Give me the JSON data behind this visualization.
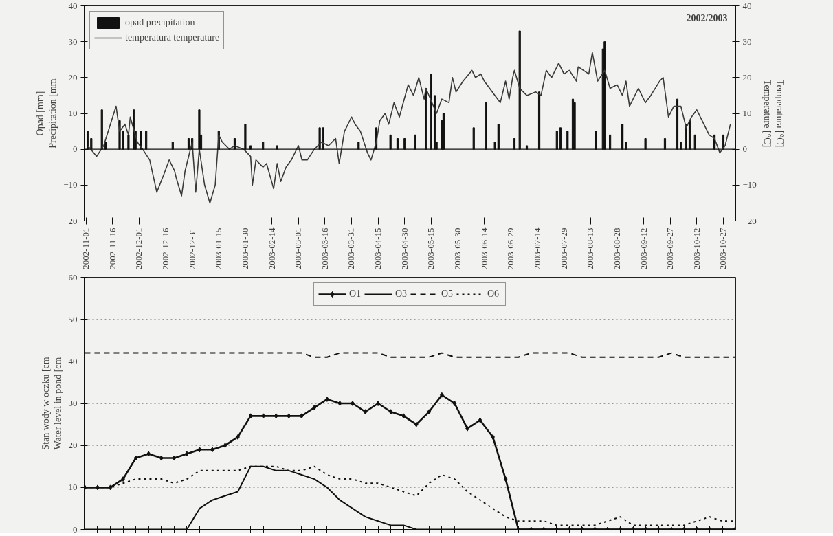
{
  "chart_data": [
    {
      "type": "bar",
      "ylabel": "Opad [mm]\nPrecipitation [mm",
      "y2label": "Temperatura [°C]\nTemperature [°C]",
      "annotations": [
        "2002/2003"
      ],
      "legend": "top left",
      "grid": false,
      "ref_lines": [
        {
          "axis": "y",
          "value": 0
        }
      ],
      "xlim": [
        "2002-10-31",
        "2003-11-03"
      ],
      "xticks": [
        "2002-11-01",
        "2002-11-16",
        "2002-12-01",
        "2002-12-16",
        "2002-12-31",
        "2003-01-15",
        "2003-01-30",
        "2003-02-14",
        "2003-03-01",
        "2003-03-16",
        "2003-03-31",
        "2003-04-15",
        "2003-04-30",
        "2003-05-15",
        "2003-05-30",
        "2003-06-14",
        "2003-06-29",
        "2003-07-14",
        "2003-07-29",
        "2003-08-13",
        "2003-08-28",
        "2003-09-12",
        "2003-09-27",
        "2003-10-12",
        "2003-10-27"
      ],
      "ylim": [
        -20,
        40
      ],
      "yticks": [
        -20,
        -10,
        0,
        10,
        20,
        30,
        40
      ],
      "y2lim": [
        -20,
        40
      ],
      "y2ticks": [
        -20,
        -10,
        0,
        10,
        20,
        30,
        40
      ],
      "series": [
        {
          "name": "opad precipitation",
          "type": "bar",
          "color": "#111111",
          "x": [
            "2002-11-02",
            "2002-11-04",
            "2002-11-10",
            "2002-11-12",
            "2002-11-20",
            "2002-11-22",
            "2002-11-25",
            "2002-11-28",
            "2002-11-29",
            "2002-12-02",
            "2002-12-05",
            "2002-12-20",
            "2002-12-29",
            "2002-12-31",
            "2003-01-04",
            "2003-01-05",
            "2003-01-15",
            "2003-01-24",
            "2003-01-30",
            "2003-02-02",
            "2003-02-09",
            "2003-02-17",
            "2003-03-13",
            "2003-03-15",
            "2003-04-04",
            "2003-04-14",
            "2003-04-22",
            "2003-04-26",
            "2003-04-30",
            "2003-05-06",
            "2003-05-12",
            "2003-05-15",
            "2003-05-17",
            "2003-05-18",
            "2003-05-21",
            "2003-05-22",
            "2003-06-08",
            "2003-06-15",
            "2003-06-20",
            "2003-06-22",
            "2003-07-01",
            "2003-07-04",
            "2003-07-08",
            "2003-07-15",
            "2003-07-25",
            "2003-07-27",
            "2003-07-31",
            "2003-08-03",
            "2003-08-04",
            "2003-08-16",
            "2003-08-20",
            "2003-08-21",
            "2003-08-24",
            "2003-08-31",
            "2003-09-02",
            "2003-09-13",
            "2003-09-24",
            "2003-10-01",
            "2003-10-03",
            "2003-10-06",
            "2003-10-08",
            "2003-10-11",
            "2003-10-22",
            "2003-10-27"
          ],
          "values": [
            5,
            3,
            11,
            2,
            8,
            5,
            4,
            11,
            5,
            5,
            5,
            2,
            3,
            3,
            11,
            4,
            5,
            3,
            7,
            1,
            2,
            1,
            6,
            6,
            2,
            6,
            4,
            3,
            3,
            4,
            17,
            21,
            15,
            2,
            8,
            10,
            6,
            13,
            2,
            7,
            3,
            33,
            1,
            16,
            5,
            6,
            5,
            14,
            13,
            5,
            28,
            30,
            4,
            7,
            2,
            3,
            3,
            14,
            2,
            7,
            8,
            4,
            4,
            4
          ]
        },
        {
          "name": "temperatura temperature",
          "type": "line",
          "color": "#3a3a3a",
          "x": [
            "2002-11-02",
            "2002-11-07",
            "2002-11-11",
            "2002-11-18",
            "2002-11-20",
            "2002-11-23",
            "2002-11-25",
            "2002-11-26",
            "2002-11-30",
            "2002-12-03",
            "2002-12-07",
            "2002-12-11",
            "2002-12-15",
            "2002-12-18",
            "2002-12-21",
            "2002-12-22",
            "2002-12-25",
            "2002-12-27",
            "2002-12-31",
            "2003-01-02",
            "2003-01-04",
            "2003-01-07",
            "2003-01-10",
            "2003-01-13",
            "2003-01-15",
            "2003-01-17",
            "2003-01-21",
            "2003-01-24",
            "2003-01-29",
            "2003-02-02",
            "2003-02-03",
            "2003-02-05",
            "2003-02-09",
            "2003-02-11",
            "2003-02-15",
            "2003-02-17",
            "2003-02-19",
            "2003-02-22",
            "2003-02-25",
            "2003-03-01",
            "2003-03-03",
            "2003-03-06",
            "2003-03-10",
            "2003-03-14",
            "2003-03-18",
            "2003-03-22",
            "2003-03-24",
            "2003-03-27",
            "2003-03-31",
            "2003-04-02",
            "2003-04-05",
            "2003-04-09",
            "2003-04-11",
            "2003-04-14",
            "2003-04-16",
            "2003-04-19",
            "2003-04-21",
            "2003-04-24",
            "2003-04-27",
            "2003-05-02",
            "2003-05-05",
            "2003-05-08",
            "2003-05-11",
            "2003-05-12",
            "2003-05-18",
            "2003-05-21",
            "2003-05-25",
            "2003-05-27",
            "2003-05-29",
            "2003-06-02",
            "2003-06-07",
            "2003-06-09",
            "2003-06-12",
            "2003-06-14",
            "2003-06-17",
            "2003-06-20",
            "2003-06-23",
            "2003-06-26",
            "2003-06-28",
            "2003-06-30",
            "2003-07-01",
            "2003-07-04",
            "2003-07-08",
            "2003-07-13",
            "2003-07-16",
            "2003-07-19",
            "2003-07-22",
            "2003-07-26",
            "2003-07-29",
            "2003-08-01",
            "2003-08-05",
            "2003-08-06",
            "2003-08-12",
            "2003-08-14",
            "2003-08-17",
            "2003-08-21",
            "2003-08-24",
            "2003-08-28",
            "2003-08-31",
            "2003-09-02",
            "2003-09-04",
            "2003-09-09",
            "2003-09-13",
            "2003-09-16",
            "2003-09-21",
            "2003-09-23",
            "2003-09-26",
            "2003-09-29",
            "2003-10-03",
            "2003-10-06",
            "2003-10-09",
            "2003-10-12",
            "2003-10-16",
            "2003-10-19",
            "2003-10-22",
            "2003-10-25",
            "2003-10-28",
            "2003-10-31"
          ],
          "values": [
            1,
            -2,
            1,
            12,
            5,
            7,
            4,
            9,
            2,
            0,
            -3,
            -12,
            -7,
            -3,
            -6,
            -8,
            -13,
            -6,
            2,
            -12,
            0,
            -10,
            -15,
            -10,
            4,
            2,
            0,
            1,
            0,
            -2,
            -10,
            -3,
            -5,
            -4,
            -11,
            -4,
            -9,
            -5,
            -3,
            1,
            -3,
            -3,
            0,
            2,
            1,
            3,
            -4,
            5,
            9,
            7,
            5,
            -1,
            -3,
            2,
            8,
            10,
            7,
            13,
            9,
            18,
            15,
            20,
            14,
            17,
            10,
            14,
            13,
            20,
            16,
            19,
            22,
            20,
            21,
            19,
            17,
            15,
            13,
            19,
            14,
            20,
            22,
            17,
            15,
            16,
            15,
            22,
            20,
            24,
            21,
            22,
            19,
            23,
            21,
            27,
            19,
            22,
            17,
            18,
            15,
            19,
            12,
            17,
            13,
            15,
            19,
            20,
            9,
            12,
            12,
            6,
            9,
            11,
            7,
            4,
            3,
            -1,
            1,
            7
          ]
        }
      ]
    },
    {
      "type": "line",
      "ylabel": "Stan wody w oczku [cm\nWater level in pond [cm",
      "legend": "top",
      "grid": "y",
      "tick_labels": "y",
      "categories": [
        null,
        null,
        null,
        null,
        null,
        null,
        null,
        null,
        null,
        null,
        null,
        null,
        null,
        null,
        null,
        null,
        null,
        null,
        null,
        null,
        null,
        null,
        null,
        null,
        null,
        null,
        null,
        null,
        null,
        null,
        null,
        null,
        null,
        null,
        null,
        null,
        null,
        null,
        null,
        null,
        null,
        null,
        null,
        null,
        null,
        null,
        null,
        null,
        null,
        null,
        null,
        null
      ],
      "ylim": [
        0,
        60
      ],
      "yticks": [
        0,
        10,
        20,
        30,
        40,
        50,
        60
      ],
      "series": [
        {
          "name": "O1",
          "color": "#111111",
          "marker": "diamond",
          "line_style": "solid",
          "values": [
            10,
            10,
            10,
            12,
            17,
            18,
            17,
            17,
            18,
            19,
            19,
            20,
            22,
            27,
            27,
            27,
            27,
            27,
            29,
            31,
            30,
            30,
            28,
            30,
            28,
            27,
            25,
            28,
            32,
            30,
            24,
            26,
            22,
            12,
            0,
            0,
            0,
            0,
            0,
            0,
            0,
            0,
            0,
            0,
            0,
            0,
            0,
            0,
            0,
            0,
            0,
            0
          ]
        },
        {
          "name": "O3",
          "color": "#111111",
          "marker": "none",
          "line_style": "solid",
          "values": [
            0,
            0,
            0,
            0,
            0,
            0,
            0,
            0,
            0,
            5,
            7,
            8,
            9,
            15,
            15,
            14,
            14,
            13,
            12,
            10,
            7,
            5,
            3,
            2,
            1,
            1,
            0,
            0,
            0,
            0,
            0,
            0,
            0,
            0,
            0,
            0,
            0,
            0,
            0,
            0,
            0,
            0,
            0,
            0,
            0,
            0,
            0,
            0,
            0,
            0,
            0,
            0
          ]
        },
        {
          "name": "O5",
          "color": "#111111",
          "marker": "none",
          "line_style": "dashed",
          "values": [
            42,
            42,
            42,
            42,
            42,
            42,
            42,
            42,
            42,
            42,
            42,
            42,
            42,
            42,
            42,
            42,
            42,
            42,
            41,
            41,
            42,
            42,
            42,
            42,
            41,
            41,
            41,
            41,
            42,
            41,
            41,
            41,
            41,
            41,
            41,
            42,
            42,
            42,
            42,
            41,
            41,
            41,
            41,
            41,
            41,
            41,
            42,
            41,
            41,
            41,
            41,
            41
          ]
        },
        {
          "name": "O6",
          "color": "#111111",
          "marker": "none",
          "line_style": "dotted",
          "values": [
            10,
            10,
            10,
            11,
            12,
            12,
            12,
            11,
            12,
            14,
            14,
            14,
            14,
            15,
            15,
            15,
            14,
            14,
            15,
            13,
            12,
            12,
            11,
            11,
            10,
            9,
            8,
            11,
            13,
            12,
            9,
            7,
            5,
            3,
            2,
            2,
            2,
            1,
            1,
            1,
            1,
            2,
            3,
            1,
            1,
            1,
            1,
            1,
            2,
            3,
            2,
            2
          ]
        }
      ]
    }
  ]
}
